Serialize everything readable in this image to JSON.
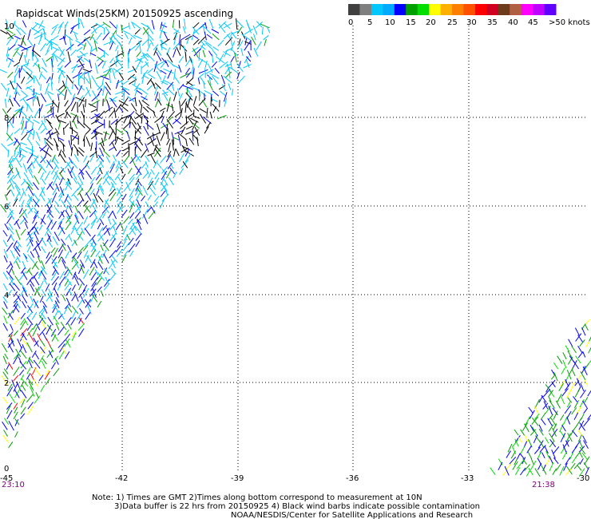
{
  "title": "Rapidscat Winds(25KM) 20150925 ascending",
  "legend": {
    "colors": [
      "#404040",
      "#7f7f7f",
      "#00c8ff",
      "#00aaff",
      "#0000ff",
      "#00a000",
      "#00dd00",
      "#ffff00",
      "#ffb000",
      "#ff8000",
      "#ff5000",
      "#ff0000",
      "#d00020",
      "#6b3b1b",
      "#b06040",
      "#ff00ff",
      "#c000ff",
      "#6000ff"
    ],
    "labels": [
      "0",
      "5",
      "10",
      "15",
      "20",
      "25",
      "30",
      "35",
      "40",
      "45",
      ">50 knots"
    ]
  },
  "axes": {
    "lon_ticks": [
      "-45",
      "-42",
      "-39",
      "-36",
      "-33",
      "-30"
    ],
    "lat_ticks": [
      "0",
      "2",
      "4",
      "6",
      "8",
      "10"
    ]
  },
  "pass_times": [
    "23:10",
    "21:38"
  ],
  "notes": [
    "Note: 1) Times are GMT 2)Times along bottom correspond to measurement at 10N",
    "3)Data buffer is 22 hrs from 20150925 4) Black wind barbs indicate possible contamination",
    "NOAA/NESDIS/Center for Satellite Applications and Research"
  ],
  "swaths": [
    {
      "name": "west-swath",
      "dominant_colors": [
        "#00c8ff",
        "#0000ff",
        "#000000",
        "#00a000",
        "#ffff00",
        "#ff0000"
      ]
    },
    {
      "name": "east-swath",
      "dominant_colors": [
        "#0000ff",
        "#00a000",
        "#00dd00",
        "#ffff00"
      ]
    }
  ]
}
